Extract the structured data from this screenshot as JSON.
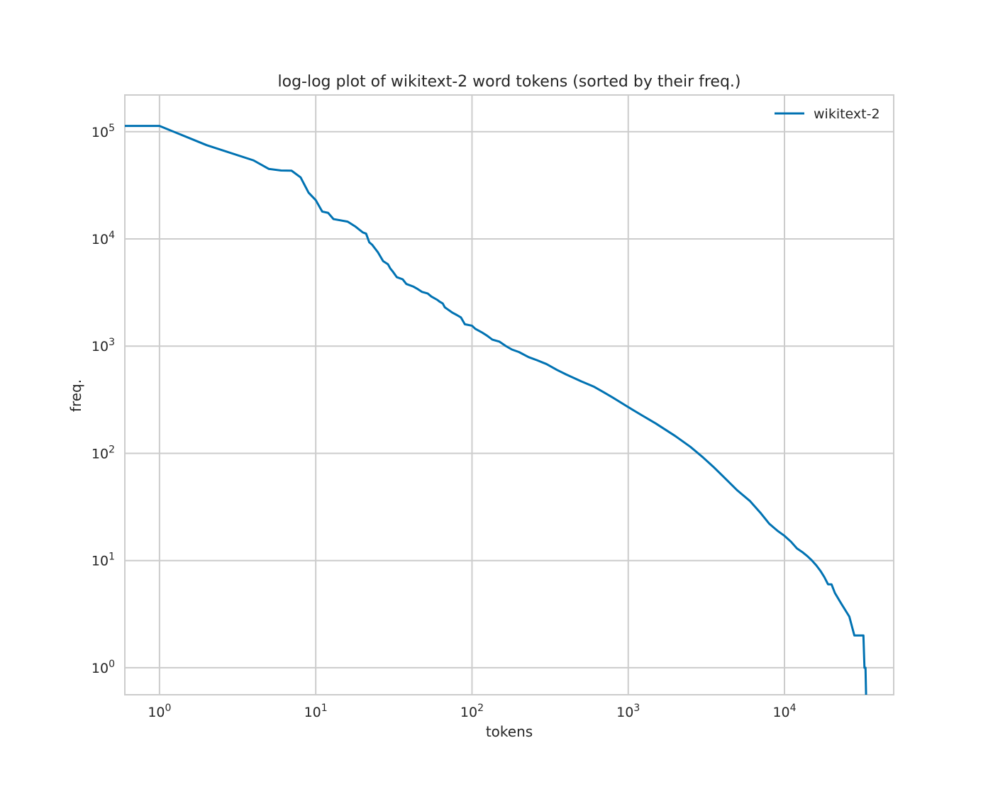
{
  "chart_data": {
    "type": "line",
    "title": "log-log plot of wikitext-2 word tokens (sorted by their freq.)",
    "xlabel": "tokens",
    "ylabel": "freq.",
    "xscale": "log",
    "yscale": "log",
    "xlim": [
      0.6,
      50000
    ],
    "ylim": [
      0.56,
      220000
    ],
    "grid": true,
    "legend_position": "upper-right",
    "x_ticks": [
      {
        "value": 1,
        "base": "10",
        "exp": "0"
      },
      {
        "value": 10,
        "base": "10",
        "exp": "1"
      },
      {
        "value": 100,
        "base": "10",
        "exp": "2"
      },
      {
        "value": 1000,
        "base": "10",
        "exp": "3"
      },
      {
        "value": 10000,
        "base": "10",
        "exp": "4"
      }
    ],
    "y_ticks": [
      {
        "value": 1,
        "base": "10",
        "exp": "0"
      },
      {
        "value": 10,
        "base": "10",
        "exp": "1"
      },
      {
        "value": 100,
        "base": "10",
        "exp": "2"
      },
      {
        "value": 1000,
        "base": "10",
        "exp": "3"
      },
      {
        "value": 10000,
        "base": "10",
        "exp": "4"
      },
      {
        "value": 100000,
        "base": "10",
        "exp": "5"
      }
    ],
    "series": [
      {
        "name": "wikitext-2",
        "color": "#0072B2",
        "points": [
          [
            0.6,
            113161
          ],
          [
            1,
            113161
          ],
          [
            2,
            75000
          ],
          [
            4,
            54000
          ],
          [
            5,
            45000
          ],
          [
            6,
            43500
          ],
          [
            7,
            43300
          ],
          [
            8,
            37500
          ],
          [
            9,
            27000
          ],
          [
            10,
            23000
          ],
          [
            11,
            18000
          ],
          [
            12,
            17500
          ],
          [
            13,
            15300
          ],
          [
            16,
            14500
          ],
          [
            18,
            13000
          ],
          [
            20,
            11500
          ],
          [
            21,
            11200
          ],
          [
            22,
            9300
          ],
          [
            23,
            8800
          ],
          [
            25,
            7500
          ],
          [
            27,
            6200
          ],
          [
            29,
            5800
          ],
          [
            30,
            5300
          ],
          [
            31,
            5000
          ],
          [
            33,
            4400
          ],
          [
            36,
            4200
          ],
          [
            38,
            3800
          ],
          [
            42,
            3600
          ],
          [
            45,
            3400
          ],
          [
            48,
            3200
          ],
          [
            52,
            3100
          ],
          [
            55,
            2900
          ],
          [
            60,
            2700
          ],
          [
            62,
            2600
          ],
          [
            65,
            2500
          ],
          [
            67,
            2300
          ],
          [
            70,
            2200
          ],
          [
            75,
            2050
          ],
          [
            80,
            1950
          ],
          [
            85,
            1850
          ],
          [
            90,
            1600
          ],
          [
            100,
            1550
          ],
          [
            105,
            1450
          ],
          [
            115,
            1350
          ],
          [
            125,
            1250
          ],
          [
            135,
            1150
          ],
          [
            150,
            1100
          ],
          [
            165,
            1000
          ],
          [
            180,
            930
          ],
          [
            200,
            880
          ],
          [
            230,
            790
          ],
          [
            260,
            740
          ],
          [
            300,
            680
          ],
          [
            350,
            600
          ],
          [
            400,
            545
          ],
          [
            500,
            470
          ],
          [
            600,
            420
          ],
          [
            700,
            370
          ],
          [
            800,
            330
          ],
          [
            1000,
            270
          ],
          [
            1200,
            230
          ],
          [
            1500,
            190
          ],
          [
            2000,
            145
          ],
          [
            2500,
            115
          ],
          [
            3000,
            92
          ],
          [
            3500,
            75
          ],
          [
            4000,
            62
          ],
          [
            5000,
            45
          ],
          [
            6000,
            36
          ],
          [
            7000,
            28
          ],
          [
            8000,
            22
          ],
          [
            9000,
            19
          ],
          [
            10000,
            17
          ],
          [
            11000,
            15
          ],
          [
            12000,
            13
          ],
          [
            13000,
            12
          ],
          [
            14000,
            11
          ],
          [
            15000,
            10
          ],
          [
            16000,
            9
          ],
          [
            17000,
            8
          ],
          [
            18000,
            7
          ],
          [
            19000,
            6
          ],
          [
            20000,
            6
          ],
          [
            21000,
            5
          ],
          [
            23000,
            4
          ],
          [
            26000,
            3
          ],
          [
            28000,
            2
          ],
          [
            32000,
            2
          ],
          [
            32500,
            1
          ],
          [
            33000,
            1
          ],
          [
            33278,
            0.56
          ]
        ]
      }
    ]
  }
}
